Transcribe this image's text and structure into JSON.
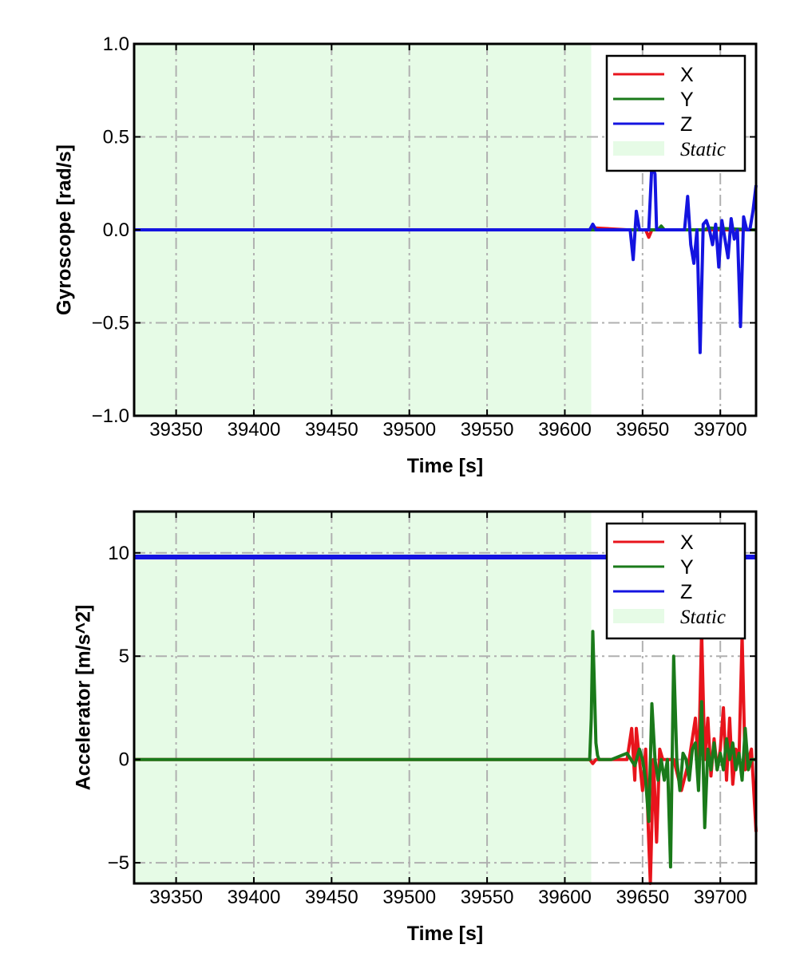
{
  "colors": {
    "x": "#e8141c",
    "y": "#1a7a1a",
    "z": "#1414e0",
    "static_fill": "#e6fbe6",
    "grid": "#b0b0b0"
  },
  "chart_data": [
    {
      "type": "line",
      "xlabel": "Time [s]",
      "ylabel": "Gyroscope [rad/s]",
      "xlim": [
        39323,
        39723
      ],
      "ylim": [
        -1.0,
        1.0
      ],
      "xticks": [
        39350,
        39400,
        39450,
        39500,
        39550,
        39600,
        39650,
        39700
      ],
      "xtick_labels": [
        "39350",
        "39400",
        "39450",
        "39500",
        "39550",
        "39600",
        "39650",
        "39700"
      ],
      "yticks": [
        1.0,
        0.5,
        0.0,
        -0.5,
        -1.0
      ],
      "ytick_labels": [
        "1.0",
        "0.5",
        "0.0",
        "−0.5",
        "−1.0"
      ],
      "grid": true,
      "legend_position": "top-right",
      "legend": [
        "X",
        "Y",
        "Z",
        "Static"
      ],
      "static_region": [
        39323,
        39617
      ],
      "series": [
        {
          "name": "X",
          "color_key": "x",
          "x": [
            39323,
            39617,
            39620,
            39640,
            39652,
            39654,
            39656,
            39680,
            39700,
            39723
          ],
          "y": [
            0.0,
            0.0,
            0.01,
            0.0,
            0.0,
            -0.04,
            0.0,
            0.0,
            0.0,
            0.0
          ]
        },
        {
          "name": "Y",
          "color_key": "y",
          "x": [
            39323,
            39617,
            39660,
            39662,
            39664,
            39690,
            39692,
            39723
          ],
          "y": [
            0.0,
            0.0,
            0.0,
            0.02,
            0.0,
            0.0,
            0.01,
            0.0
          ]
        },
        {
          "name": "Z",
          "color_key": "z",
          "x": [
            39323,
            39616,
            39618,
            39620,
            39622,
            39642,
            39644,
            39646,
            39648,
            39650,
            39652,
            39654,
            39656,
            39658,
            39659,
            39661,
            39663,
            39677,
            39679,
            39681,
            39683,
            39685,
            39687,
            39689,
            39691,
            39693,
            39695,
            39697,
            39699,
            39701,
            39703,
            39705,
            39707,
            39709,
            39711,
            39713,
            39715,
            39717,
            39719,
            39721,
            39723
          ],
          "y": [
            0.0,
            0.0,
            0.03,
            0.0,
            0.0,
            0.0,
            -0.16,
            0.1,
            0.0,
            0.0,
            0.0,
            0.0,
            0.35,
            0.3,
            0.0,
            0.0,
            0.0,
            0.0,
            0.18,
            -0.08,
            -0.18,
            0.0,
            -0.66,
            0.03,
            0.05,
            0.0,
            -0.08,
            0.03,
            -0.2,
            0.05,
            -0.05,
            -0.15,
            0.06,
            -0.05,
            0.0,
            -0.52,
            0.07,
            0.0,
            0.0,
            0.1,
            0.24
          ]
        }
      ]
    },
    {
      "type": "line",
      "xlabel": "Time [s]",
      "ylabel": "Accelerator [m/s^2]",
      "xlim": [
        39323,
        39723
      ],
      "ylim": [
        -6.0,
        12.0
      ],
      "xticks": [
        39350,
        39400,
        39450,
        39500,
        39550,
        39600,
        39650,
        39700
      ],
      "xtick_labels": [
        "39350",
        "39400",
        "39450",
        "39500",
        "39550",
        "39600",
        "39650",
        "39700"
      ],
      "yticks": [
        10,
        5,
        0,
        -5
      ],
      "ytick_labels": [
        "10",
        "5",
        "0",
        "−5"
      ],
      "grid": true,
      "legend_position": "top-right",
      "legend": [
        "X",
        "Y",
        "Z",
        "Static"
      ],
      "static_region": [
        39323,
        39617
      ],
      "series": [
        {
          "name": "Z",
          "color_key": "z",
          "x": [
            39323,
            39723
          ],
          "y": [
            9.8,
            9.8
          ]
        },
        {
          "name": "X",
          "color_key": "x",
          "x": [
            39323,
            39616,
            39618,
            39620,
            39640,
            39643,
            39645,
            39646,
            39648,
            39650,
            39652,
            39654,
            39655,
            39657,
            39659,
            39661,
            39663,
            39670,
            39675,
            39680,
            39684,
            39686,
            39688,
            39690,
            39692,
            39694,
            39696,
            39698,
            39700,
            39702,
            39704,
            39706,
            39708,
            39710,
            39712,
            39714,
            39716,
            39718,
            39720,
            39723
          ],
          "y": [
            0.0,
            0.0,
            -0.2,
            0.0,
            0.0,
            1.5,
            -1.0,
            1.5,
            0.0,
            -1.5,
            0.5,
            -4.0,
            -6.0,
            0.0,
            -4.0,
            0.5,
            0.0,
            0.0,
            -1.5,
            0.0,
            2.0,
            -0.5,
            6.2,
            0.0,
            2.0,
            -0.8,
            1.0,
            -0.5,
            0.5,
            2.5,
            -1.0,
            2.0,
            -1.2,
            0.5,
            0.0,
            6.0,
            -0.5,
            0.0,
            0.5,
            -3.5
          ]
        },
        {
          "name": "Y",
          "color_key": "y",
          "x": [
            39323,
            39616,
            39617,
            39618,
            39619,
            39620,
            39621,
            39622,
            39630,
            39640,
            39645,
            39648,
            39650,
            39652,
            39654,
            39656,
            39658,
            39660,
            39662,
            39664,
            39666,
            39668,
            39670,
            39672,
            39674,
            39676,
            39678,
            39680,
            39682,
            39684,
            39686,
            39688,
            39690,
            39692,
            39694,
            39696,
            39698,
            39700,
            39702,
            39704,
            39706,
            39708,
            39710,
            39712,
            39714,
            39716,
            39718,
            39720,
            39723
          ],
          "y": [
            0.0,
            0.0,
            2.0,
            6.2,
            3.5,
            0.8,
            0.2,
            0.0,
            0.0,
            0.3,
            -0.3,
            0.5,
            0.0,
            -1.0,
            -3.0,
            2.7,
            0.0,
            -1.0,
            0.0,
            -1.0,
            0.0,
            -5.2,
            5.0,
            0.0,
            -1.5,
            0.3,
            0.0,
            -1.0,
            0.5,
            0.8,
            -1.5,
            2.8,
            -3.3,
            0.5,
            -0.5,
            0.8,
            -0.5,
            0.3,
            -0.5,
            1.0,
            0.0,
            0.8,
            -0.5,
            0.3,
            -1.0,
            1.5,
            -0.5,
            0.0,
            0.0
          ]
        }
      ]
    }
  ]
}
